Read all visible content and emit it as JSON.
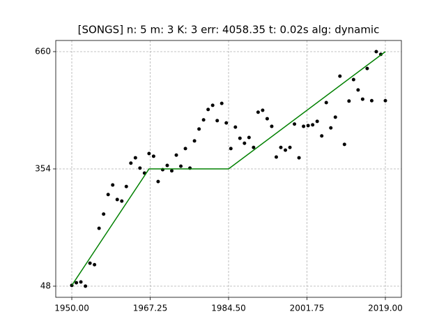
{
  "chart_data": {
    "type": "scatter",
    "title": "[SONGS] n: 5 m: 3 K: 3 err: 4058.35 t: 0.02s alg: dynamic",
    "xlim": [
      1946.47,
      2022.53
    ],
    "ylim": [
      18.9,
      689.1
    ],
    "xticks": [
      {
        "value": 1950,
        "label": "1950.00"
      },
      {
        "value": 1967.25,
        "label": "1967.25"
      },
      {
        "value": 1984.5,
        "label": "1984.50"
      },
      {
        "value": 2001.75,
        "label": "2001.75"
      },
      {
        "value": 2019,
        "label": "2019.00"
      }
    ],
    "yticks": [
      48,
      354,
      660
    ],
    "grid": true,
    "series": [
      {
        "type": "scatter",
        "color": "#000000",
        "x": [
          1950,
          1951,
          1952,
          1953,
          1954,
          1955,
          1956,
          1957,
          1958,
          1959,
          1960,
          1961,
          1962,
          1963,
          1964,
          1965,
          1966,
          1967,
          1968,
          1969,
          1970,
          1971,
          1972,
          1973,
          1974,
          1975,
          1976,
          1977,
          1978,
          1979,
          1980,
          1981,
          1982,
          1983,
          1984,
          1985,
          1986,
          1987,
          1988,
          1989,
          1990,
          1991,
          1992,
          1993,
          1994,
          1995,
          1996,
          1997,
          1998,
          1999,
          2000,
          2001,
          2002,
          2003,
          2004,
          2005,
          2006,
          2007,
          2008,
          2009,
          2010,
          2011,
          2012,
          2013,
          2014,
          2015,
          2016,
          2017,
          2018,
          2019
        ],
        "values": [
          50,
          57,
          59,
          48,
          108,
          104,
          199,
          236,
          287,
          312,
          274,
          270,
          308,
          369,
          383,
          356,
          343,
          394,
          387,
          321,
          352,
          363,
          349,
          390,
          361,
          407,
          356,
          427,
          458,
          482,
          509,
          520,
          480,
          525,
          474,
          407,
          463,
          434,
          421,
          436,
          410,
          502,
          507,
          485,
          465,
          385,
          410,
          403,
          410,
          471,
          383,
          465,
          467,
          469,
          478,
          440,
          527,
          461,
          489,
          596,
          418,
          531,
          587,
          560,
          536,
          616,
          532,
          660,
          653,
          532
        ]
      },
      {
        "type": "line",
        "color": "#008000",
        "x": [
          1950,
          1967,
          1984.5,
          2019
        ],
        "values": [
          50,
          354,
          354,
          660
        ]
      }
    ]
  }
}
